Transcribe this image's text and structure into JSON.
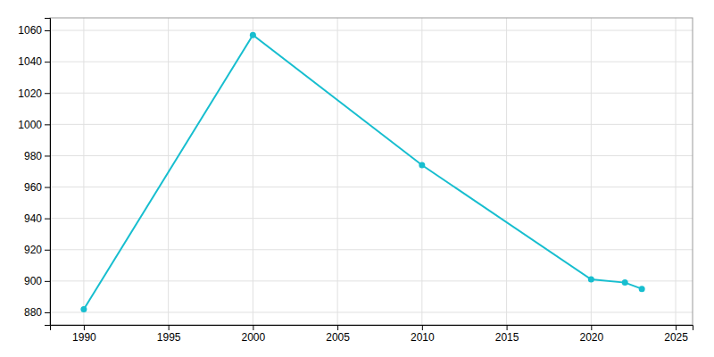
{
  "chart_data": {
    "type": "line",
    "x": [
      1990,
      2000,
      2010,
      2020,
      2022,
      2023
    ],
    "values": [
      882,
      1057,
      974,
      901,
      899,
      895
    ],
    "color": "#17becf",
    "marker": "circle",
    "xlim": [
      1988,
      2026
    ],
    "ylim": [
      872,
      1068
    ],
    "xticks": [
      1990,
      1995,
      2000,
      2005,
      2010,
      2015,
      2020,
      2025
    ],
    "yticks": [
      880,
      900,
      920,
      940,
      960,
      980,
      1000,
      1020,
      1040,
      1060
    ],
    "grid": true
  }
}
